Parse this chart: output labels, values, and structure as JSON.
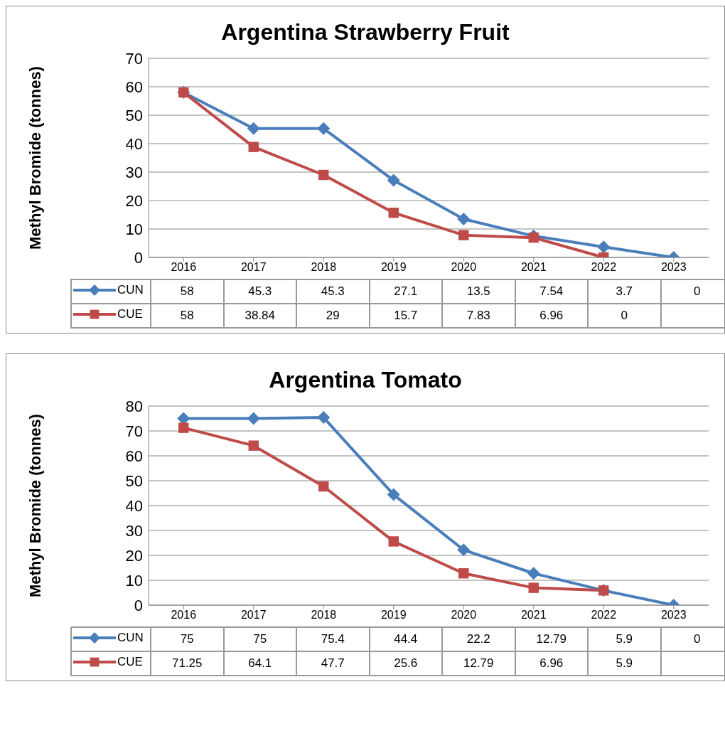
{
  "chart_data": [
    {
      "type": "line",
      "title": "Argentina Strawberry Fruit",
      "ylabel": "Methyl Bromide (tonnes)",
      "categories": [
        "2016",
        "2017",
        "2018",
        "2019",
        "2020",
        "2021",
        "2022",
        "2023"
      ],
      "series": [
        {
          "name": "CUN",
          "color": "#4a7ebb",
          "marker": "diamond",
          "values": [
            58,
            45.3,
            45.3,
            27.1,
            13.5,
            7.54,
            3.7,
            0
          ]
        },
        {
          "name": "CUE",
          "color": "#be4b48",
          "marker": "square",
          "values": [
            58,
            38.84,
            29,
            15.7,
            7.83,
            6.96,
            0,
            null
          ]
        }
      ],
      "ylim": [
        0,
        70
      ],
      "yticks": [
        0,
        10,
        20,
        30,
        40,
        50,
        60,
        70
      ],
      "grid": "y",
      "legend": "bottom",
      "data_labels": true,
      "line_style": "solid"
    },
    {
      "type": "line",
      "title": "Argentina Tomato",
      "ylabel": "Methyl Bromide (tonnes)",
      "categories": [
        "2016",
        "2017",
        "2018",
        "2019",
        "2020",
        "2021",
        "2022",
        "2023"
      ],
      "series": [
        {
          "name": "CUN",
          "color": "#4a7ebb",
          "marker": "diamond",
          "values": [
            75,
            75,
            75.4,
            44.4,
            22.2,
            12.79,
            5.9,
            0
          ]
        },
        {
          "name": "CUE",
          "color": "#be4b48",
          "marker": "square",
          "values": [
            71.25,
            64.1,
            47.7,
            25.6,
            12.79,
            6.96,
            5.9,
            null
          ]
        }
      ],
      "ylim": [
        0,
        80
      ],
      "yticks": [
        0,
        10,
        20,
        30,
        40,
        50,
        60,
        70,
        80
      ],
      "grid": "y",
      "legend": "bottom",
      "data_labels": true,
      "line_style": "solid"
    }
  ]
}
